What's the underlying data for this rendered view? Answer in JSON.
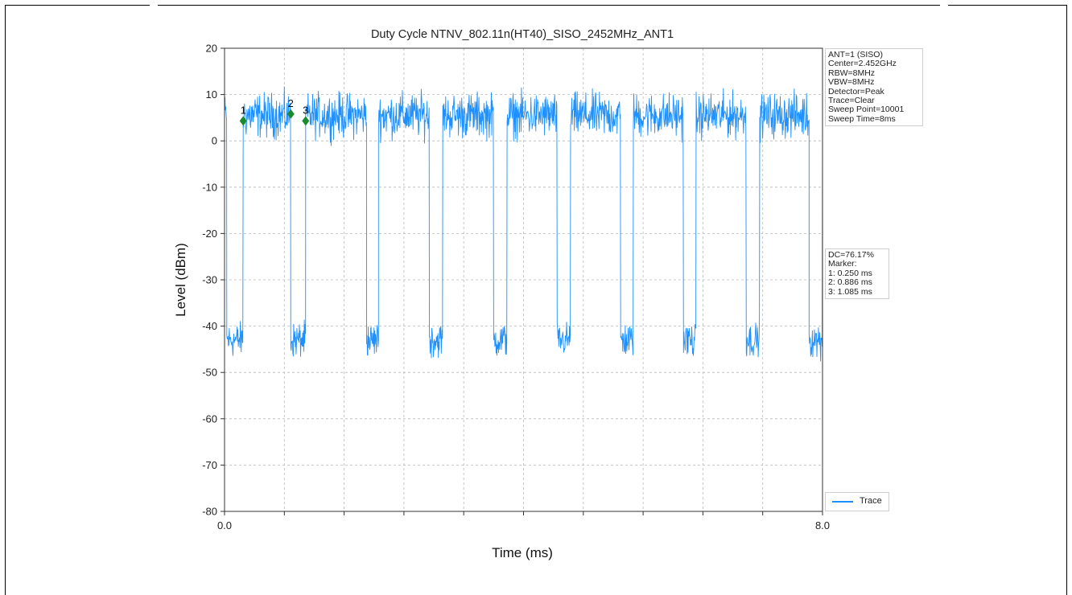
{
  "chart_data": {
    "type": "line",
    "title": "Duty Cycle NTNV_802.11n(HT40)_SISO_2452MHz_ANT1",
    "xlabel": "Time (ms)",
    "ylabel": "Level (dBm)",
    "xlim": [
      0.0,
      8.0
    ],
    "ylim": [
      -80,
      20
    ],
    "x_tick_labels": [
      "0.0",
      "8.0"
    ],
    "y_ticks": [
      20,
      10,
      0,
      -10,
      -20,
      -30,
      -40,
      -50,
      -60,
      -70,
      -80
    ],
    "grid": true,
    "legend_position": "bottom-right",
    "series": [
      {
        "name": "Trace",
        "color": "#1e90ff",
        "on_level_dbm": 5.5,
        "off_level_dbm": -43,
        "segments_ms": [
          {
            "state": "on",
            "start": 0.0,
            "end": 0.03
          },
          {
            "state": "off",
            "start": 0.03,
            "end": 0.25
          },
          {
            "state": "on",
            "start": 0.25,
            "end": 0.886
          },
          {
            "state": "off",
            "start": 0.886,
            "end": 1.085
          },
          {
            "state": "on",
            "start": 1.085,
            "end": 1.9
          },
          {
            "state": "off",
            "start": 1.9,
            "end": 2.06
          },
          {
            "state": "on",
            "start": 2.06,
            "end": 2.74
          },
          {
            "state": "off",
            "start": 2.74,
            "end": 2.92
          },
          {
            "state": "on",
            "start": 2.92,
            "end": 3.6
          },
          {
            "state": "off",
            "start": 3.6,
            "end": 3.78
          },
          {
            "state": "on",
            "start": 3.78,
            "end": 4.45
          },
          {
            "state": "off",
            "start": 4.45,
            "end": 4.63
          },
          {
            "state": "on",
            "start": 4.63,
            "end": 5.3
          },
          {
            "state": "off",
            "start": 5.3,
            "end": 5.47
          },
          {
            "state": "on",
            "start": 5.47,
            "end": 6.14
          },
          {
            "state": "off",
            "start": 6.14,
            "end": 6.31
          },
          {
            "state": "on",
            "start": 6.31,
            "end": 6.98
          },
          {
            "state": "off",
            "start": 6.98,
            "end": 7.16
          },
          {
            "state": "on",
            "start": 7.16,
            "end": 7.82
          },
          {
            "state": "off",
            "start": 7.82,
            "end": 8.0
          }
        ]
      }
    ],
    "markers": [
      {
        "label": "1",
        "x": 0.25,
        "y": 4.3
      },
      {
        "label": "2",
        "x": 0.886,
        "y": 5.8
      },
      {
        "label": "3",
        "x": 1.085,
        "y": 4.3
      }
    ],
    "info_box_top": [
      "ANT=1 (SISO)",
      "Center=2.452GHz",
      "RBW=8MHz",
      "VBW=8MHz",
      "Detector=Peak",
      "Trace=Clear",
      "Sweep Point=10001",
      "Sweep Time=8ms"
    ],
    "info_box_mid": [
      "DC=76.17%",
      "Marker:",
      "1: 0.250 ms",
      "2: 0.886 ms",
      "3: 1.085 ms"
    ],
    "legend_label": "Trace",
    "marker_color": "#1a8a2e"
  }
}
